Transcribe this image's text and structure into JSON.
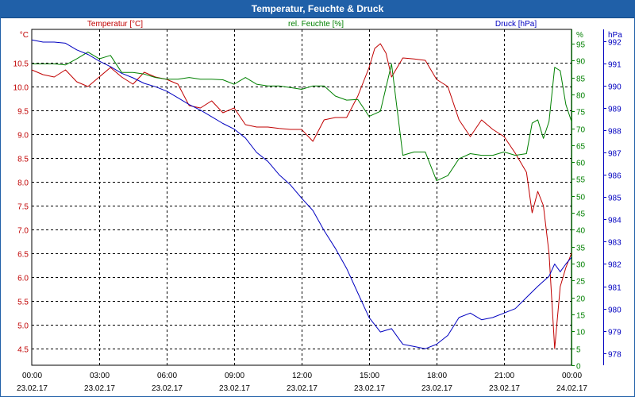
{
  "window": {
    "title": "Temperatur, Feuchte & Druck"
  },
  "chart_data": {
    "type": "line",
    "title": "Temperatur, Feuchte & Druck",
    "grid": true,
    "colors": {
      "temperature": "#c00000",
      "humidity": "#008000",
      "pressure": "#0000c0",
      "grid": "#000000"
    },
    "x_ticks": [
      {
        "time": "00:00",
        "date": "23.02.17"
      },
      {
        "time": "03:00",
        "date": "23.02.17"
      },
      {
        "time": "06:00",
        "date": "23.02.17"
      },
      {
        "time": "09:00",
        "date": "23.02.17"
      },
      {
        "time": "12:00",
        "date": "23.02.17"
      },
      {
        "time": "15:00",
        "date": "23.02.17"
      },
      {
        "time": "18:00",
        "date": "23.02.17"
      },
      {
        "time": "21:00",
        "date": "23.02.17"
      },
      {
        "time": "00:00",
        "date": "24.02.17"
      }
    ],
    "xlim": [
      0,
      24
    ],
    "axes": {
      "temperature": {
        "label": "Temperatur [°C]",
        "unit": "°C",
        "ylim": [
          4.15,
          11.2
        ],
        "ticks": [
          "10.5",
          "10.0",
          "9.5",
          "9.0",
          "8.5",
          "8.0",
          "7.5",
          "7.0",
          "6.5",
          "6.0",
          "5.5",
          "5.0",
          "4.5"
        ]
      },
      "humidity": {
        "label": "rel. Feuchte [%]",
        "unit": "%",
        "ylim": [
          0,
          99.2
        ],
        "ticks": [
          "95",
          "90",
          "85",
          "80",
          "75",
          "70",
          "65",
          "60",
          "55",
          "50",
          "45",
          "40",
          "35",
          "30",
          "25",
          "20",
          "15",
          "10",
          "5",
          "0"
        ]
      },
      "pressure": {
        "label": "Druck [hPa]",
        "unit": "hPa",
        "ylim": [
          977.46,
          992.52
        ],
        "ticks": [
          "992",
          "991",
          "990",
          "989",
          "988",
          "987",
          "986",
          "985",
          "984",
          "983",
          "982",
          "981",
          "980",
          "979",
          "978"
        ]
      }
    },
    "series": [
      {
        "name": "Temperatur [°C]",
        "axis": "temperature",
        "x": [
          0,
          0.5,
          1,
          1.5,
          2,
          2.5,
          3,
          3.5,
          4,
          4.5,
          5,
          5.5,
          6,
          6.5,
          7,
          7.5,
          8,
          8.5,
          9,
          9.5,
          10,
          10.5,
          11,
          11.5,
          12,
          12.5,
          13,
          13.5,
          14,
          14.5,
          15,
          15.25,
          15.5,
          15.75,
          16,
          16.5,
          17,
          17.5,
          18,
          18.5,
          19,
          19.5,
          20,
          20.5,
          21,
          21.5,
          22,
          22.25,
          22.5,
          22.75,
          23,
          23.25,
          23.5,
          23.75,
          24
        ],
        "y": [
          10.35,
          10.25,
          10.2,
          10.35,
          10.1,
          10.0,
          10.2,
          10.4,
          10.2,
          10.05,
          10.3,
          10.2,
          10.15,
          10.05,
          9.6,
          9.55,
          9.7,
          9.45,
          9.55,
          9.2,
          9.15,
          9.15,
          9.12,
          9.1,
          9.1,
          8.85,
          9.3,
          9.35,
          9.35,
          9.8,
          10.4,
          10.8,
          10.9,
          10.7,
          10.2,
          10.6,
          10.58,
          10.55,
          10.15,
          10.0,
          9.3,
          8.95,
          9.3,
          9.1,
          8.95,
          8.6,
          8.2,
          7.35,
          7.8,
          7.5,
          6.5,
          4.5,
          5.8,
          6.2,
          6.5
        ]
      },
      {
        "name": "rel. Feuchte [%]",
        "axis": "humidity",
        "x": [
          0,
          0.5,
          1,
          1.5,
          2,
          2.5,
          3,
          3.5,
          4,
          4.5,
          5,
          5.5,
          6,
          6.5,
          7,
          7.5,
          8,
          8.5,
          9,
          9.5,
          10,
          10.5,
          11,
          11.5,
          12,
          12.5,
          13,
          13.5,
          14,
          14.5,
          15,
          15.5,
          16,
          16.5,
          17,
          17.5,
          18,
          18.5,
          19,
          19.5,
          20,
          20.5,
          21,
          21.5,
          22,
          22.25,
          22.5,
          22.75,
          23,
          23.25,
          23.5,
          23.75,
          24
        ],
        "y": [
          89,
          89,
          89,
          88.7,
          90.5,
          92.5,
          90.5,
          91.5,
          86.5,
          86.5,
          86,
          85,
          84.5,
          84.5,
          85,
          84.5,
          84.5,
          84.3,
          83,
          85,
          83,
          82.5,
          82.5,
          82,
          81.5,
          82.5,
          82.5,
          79.5,
          78.3,
          78.5,
          73.5,
          75,
          89,
          62,
          63,
          63,
          54.5,
          56,
          61,
          62.5,
          62,
          62,
          63,
          62,
          62.5,
          71.5,
          72.5,
          67,
          72,
          88,
          87,
          77,
          72
        ]
      },
      {
        "name": "Druck [hPa]",
        "axis": "pressure",
        "x": [
          0,
          0.5,
          1,
          1.5,
          2,
          2.5,
          3,
          3.5,
          4,
          4.5,
          5,
          5.5,
          6,
          6.5,
          7,
          7.5,
          8,
          8.5,
          9,
          9.5,
          10,
          10.5,
          11,
          11.5,
          12,
          12.5,
          13,
          13.5,
          14,
          14.5,
          15,
          15.5,
          16,
          16.5,
          17,
          17.5,
          18,
          18.5,
          19,
          19.5,
          20,
          20.5,
          21,
          21.5,
          22,
          22.5,
          23,
          23.25,
          23.5,
          23.75,
          24
        ],
        "y": [
          992.05,
          991.95,
          991.95,
          991.9,
          991.6,
          991.4,
          991.1,
          990.85,
          990.55,
          990.35,
          990.1,
          989.95,
          989.75,
          989.45,
          989.15,
          988.9,
          988.6,
          988.3,
          988.05,
          987.65,
          987.0,
          986.6,
          986.0,
          985.55,
          984.95,
          984.4,
          983.5,
          982.7,
          981.8,
          980.7,
          979.6,
          978.95,
          979.1,
          978.4,
          978.3,
          978.2,
          978.4,
          978.8,
          979.6,
          979.8,
          979.5,
          979.6,
          979.8,
          980.0,
          980.5,
          981.0,
          981.45,
          982.0,
          981.65,
          982.0,
          982.3
        ]
      }
    ]
  }
}
